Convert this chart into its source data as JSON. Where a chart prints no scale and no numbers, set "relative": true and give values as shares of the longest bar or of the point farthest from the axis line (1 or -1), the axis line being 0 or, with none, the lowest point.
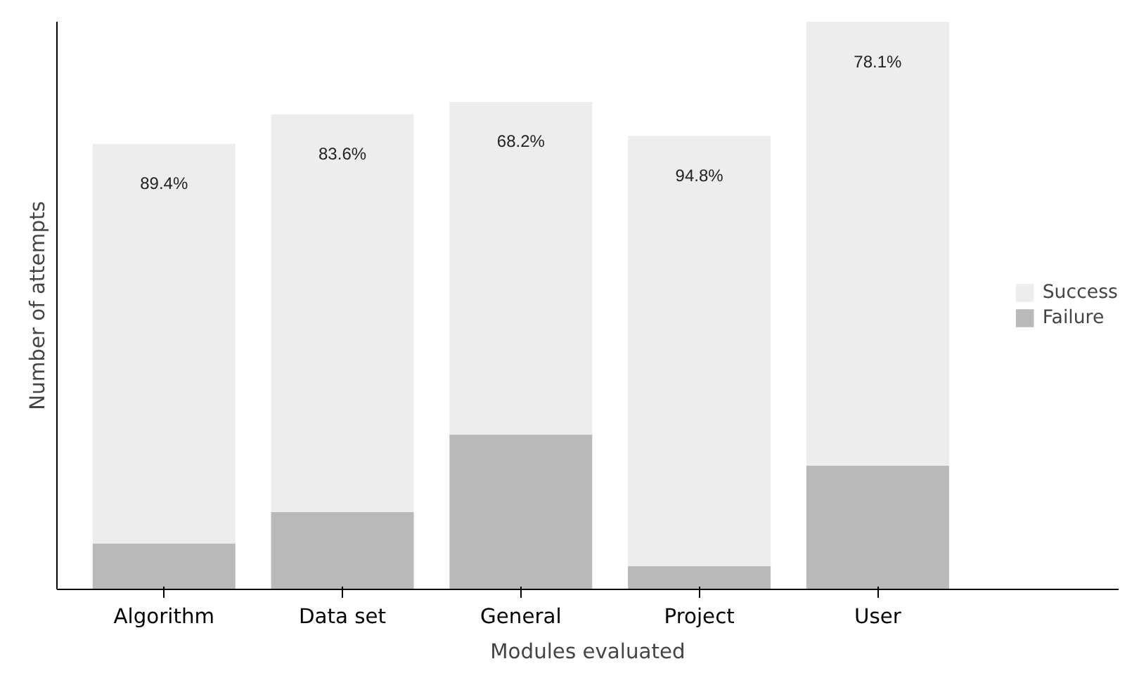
{
  "chart_data": {
    "type": "bar",
    "stacked": true,
    "relative": true,
    "xlabel": "Modules evaluated",
    "ylabel": "Number of attempts",
    "categories": [
      "Algorithm",
      "Data set",
      "General",
      "Project",
      "User"
    ],
    "series": [
      {
        "name": "Failure",
        "color": "#b9b9b9",
        "values": [
          0.081,
          0.136,
          0.273,
          0.041,
          0.218
        ]
      },
      {
        "name": "Success",
        "color": "#ededed",
        "values": [
          0.704,
          0.701,
          0.586,
          0.758,
          0.782
        ]
      }
    ],
    "annotations": [
      "89.4%",
      "83.6%",
      "68.2%",
      "94.8%",
      "78.1%"
    ],
    "legend": "right",
    "grid": false
  }
}
